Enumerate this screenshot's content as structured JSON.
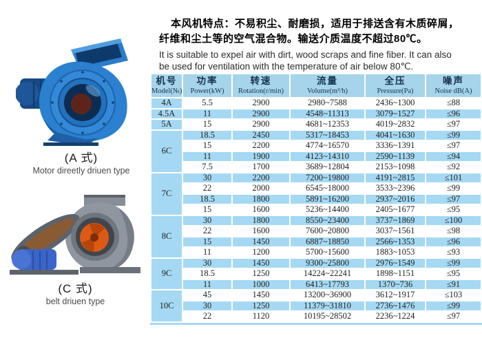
{
  "intro": {
    "cn_line1": "本风机特点：不易积尘、耐磨损，适用于排送含有木质碎屑，",
    "cn_line2": "纤维和尘土等的空气混合物。输送介质温度不超过80℃。",
    "en_line1": "It is suitable to expel air with dirt, wood scraps and fine fiber. It can also",
    "en_line2": "be used for ventilation with the temperature of air below 80℃."
  },
  "figures": {
    "fan_a": {
      "caption_cn": "(A 式)",
      "caption_en": "Motor direetly driuen type"
    },
    "fan_c": {
      "caption_cn": "(C 式)",
      "caption_en": "belt driuen type"
    }
  },
  "table": {
    "headers": [
      {
        "cn": "机号",
        "en": "Model(№)"
      },
      {
        "cn": "功率",
        "en": "Power(kW)"
      },
      {
        "cn": "转速",
        "en": "Rotation(r/min)"
      },
      {
        "cn": "流量",
        "en": "Volume(m³/h)"
      },
      {
        "cn": "全压",
        "en": "Pressure(Pa)"
      },
      {
        "cn": "噪声",
        "en": "Noise dB(A)"
      }
    ],
    "groups": [
      {
        "model": "4A",
        "rows": [
          [
            "5.5",
            "2900",
            "2980~7588",
            "2436~1300",
            "≤88"
          ]
        ]
      },
      {
        "model": "4.5A",
        "rows": [
          [
            "11",
            "2900",
            "4548~11313",
            "3079~1527",
            "≤96"
          ]
        ]
      },
      {
        "model": "5A",
        "rows": [
          [
            "15",
            "2900",
            "4681~12353",
            "4019~2832",
            "≤97"
          ]
        ]
      },
      {
        "model": "6C",
        "rows": [
          [
            "18.5",
            "2450",
            "5317~18453",
            "4041~1630",
            "≤99"
          ],
          [
            "15",
            "2200",
            "4774~16570",
            "3336~1391",
            "≤97"
          ],
          [
            "11",
            "1900",
            "4123~14310",
            "2590~1139",
            "≤94"
          ],
          [
            "7.5",
            "1700",
            "3689~12804",
            "2153~1098",
            "≤92"
          ]
        ]
      },
      {
        "model": "7C",
        "rows": [
          [
            "30",
            "2200",
            "7200~19800",
            "4191~2815",
            "≤101"
          ],
          [
            "22",
            "2000",
            "6545~18000",
            "3533~2396",
            "≤99"
          ],
          [
            "18.5",
            "1800",
            "5891~16200",
            "2937~2016",
            "≤97"
          ],
          [
            "15",
            "1600",
            "5236~14400",
            "2405~1677",
            "≤95"
          ]
        ]
      },
      {
        "model": "8C",
        "rows": [
          [
            "30",
            "1800",
            "8550~23400",
            "3737~1869",
            "≤100"
          ],
          [
            "22",
            "1600",
            "7600~20800",
            "3037~1561",
            "≤98"
          ],
          [
            "15",
            "1450",
            "6887~18850",
            "2566~1353",
            "≤96"
          ],
          [
            "11",
            "1200",
            "5700~15600",
            "1883~1053",
            "≤93"
          ]
        ]
      },
      {
        "model": "9C",
        "rows": [
          [
            "30",
            "1450",
            "9300~25800",
            "2976~1549",
            "≤99"
          ],
          [
            "18.5",
            "1250",
            "14224~22241",
            "1898~1151",
            "≤95"
          ],
          [
            "11",
            "1000",
            "6413~17793",
            "1370~736",
            "≤91"
          ]
        ]
      },
      {
        "model": "10C",
        "rows": [
          [
            "45",
            "1450",
            "13200~36900",
            "3612~1917",
            "≤103"
          ],
          [
            "30",
            "1250",
            "11379~31810",
            "2736~1476",
            "≤99"
          ],
          [
            "22",
            "1120",
            "10195~28502",
            "2236~1224",
            "≤97"
          ]
        ]
      }
    ]
  },
  "colors": {
    "table_blue": "#a5d9f3",
    "header_blue": "#a6d4ea",
    "fan_a_blue": "#2b80cf",
    "fan_c_gray": "#8f96a0",
    "impeller_orange": "#dd5a14"
  }
}
